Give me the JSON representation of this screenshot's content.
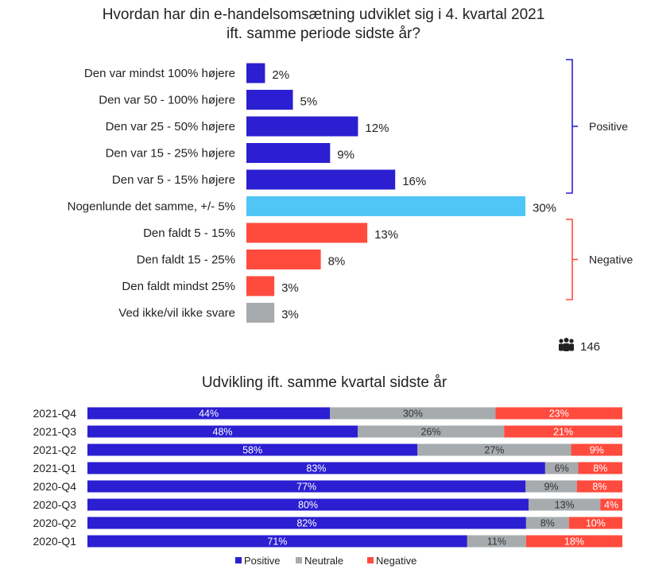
{
  "colors": {
    "positive": "#2b1fd1",
    "neutral": "#4fc6f5",
    "negative": "#ff4b3e",
    "no_answer": "#a7abae",
    "neutral_stack": "#a7abae"
  },
  "respondents": {
    "icon": "people-icon",
    "count": "146"
  },
  "chart_data": [
    {
      "type": "bar",
      "orientation": "horizontal",
      "title_line1": "Hvordan har din e-handelsomsætning udviklet sig i 4. kvartal 2021",
      "title_line2": "ift. samme periode sidste år?",
      "categories": [
        "Den var mindst 100% højere",
        "Den var 50 - 100% højere",
        "Den var 25 - 50% højere",
        "Den var 15 - 25% højere",
        "Den var 5 - 15% højere",
        "Nogenlunde det samme, +/- 5%",
        "Den faldt 5 - 15%",
        "Den faldt 15 - 25%",
        "Den faldt mindst 25%",
        "Ved ikke/vil ikke svare"
      ],
      "values": [
        2,
        5,
        12,
        9,
        16,
        30,
        13,
        8,
        3,
        3
      ],
      "value_labels": [
        "2%",
        "5%",
        "12%",
        "9%",
        "16%",
        "30%",
        "13%",
        "8%",
        "3%",
        "3%"
      ],
      "bar_groups": [
        "positive",
        "positive",
        "positive",
        "positive",
        "positive",
        "neutral",
        "negative",
        "negative",
        "negative",
        "no_answer"
      ],
      "brackets": [
        {
          "label": "Positive",
          "group": "positive"
        },
        {
          "label": "Negative",
          "group": "negative"
        }
      ]
    },
    {
      "type": "bar",
      "orientation": "horizontal",
      "stacked": true,
      "title": "Udvikling ift. samme  kvartal sidste år",
      "categories": [
        "2021-Q4",
        "2021-Q3",
        "2021-Q2",
        "2021-Q1",
        "2020-Q4",
        "2020-Q3",
        "2020-Q2",
        "2020-Q1"
      ],
      "series": [
        {
          "name": "Positive",
          "values": [
            44,
            48,
            58,
            83,
            77,
            80,
            82,
            71
          ],
          "color_key": "positive"
        },
        {
          "name": "Neutrale",
          "values": [
            30,
            26,
            27,
            6,
            9,
            13,
            8,
            11
          ],
          "color_key": "neutral_stack"
        },
        {
          "name": "Negative",
          "values": [
            23,
            21,
            9,
            8,
            8,
            4,
            10,
            18
          ],
          "color_key": "negative"
        }
      ],
      "legend_position": "bottom"
    }
  ]
}
